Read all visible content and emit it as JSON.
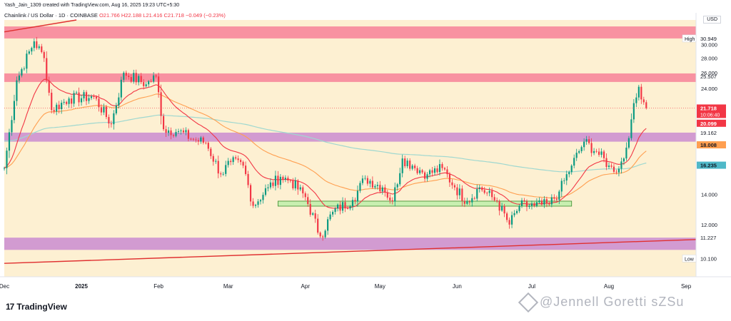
{
  "header": {
    "created_text": "Yash_Jain_1309 created with TradingView.com, Aug 16, 2025 19:23 UTC+5:30",
    "symbol_text": "Chainlink / US Dollar · 1D · COINBASE",
    "ohlc_o": "O21.766",
    "ohlc_h": "H22.188",
    "ohlc_l": "L21.416",
    "ohlc_c": "C21.718",
    "ohlc_change": "−0.049 (−0.23%)",
    "currency": "USD"
  },
  "branding": {
    "logo_text": "TradingView",
    "logo_mark": "17",
    "watermark": "@Jennell Goretti sZSu"
  },
  "colors": {
    "plot_bg": "#fdf0d2",
    "up": "#089981",
    "down": "#f23645",
    "pink_zone": "#f7849a",
    "purple_zone": "#cc8ed0",
    "green_zone": "#c8efb0",
    "ema_fast": "#f23645",
    "ema_mid": "#ff9f50",
    "ema_slow": "#9fd8d0",
    "trendline": "#e03030"
  },
  "chart_data": {
    "type": "candlestick",
    "title": "Chainlink / US Dollar · 1D · COINBASE",
    "y_scale": "log",
    "ylim": [
      9.2,
      34
    ],
    "x_range": [
      "2024-12-01",
      "2025-09-05"
    ],
    "x_tick_labels": [
      {
        "date": "2024-12-01",
        "label": "Dec",
        "bold": false
      },
      {
        "date": "2025-01-01",
        "label": "2025",
        "bold": true
      },
      {
        "date": "2025-02-01",
        "label": "Feb",
        "bold": false
      },
      {
        "date": "2025-03-01",
        "label": "Mar",
        "bold": false
      },
      {
        "date": "2025-04-01",
        "label": "Apr",
        "bold": false
      },
      {
        "date": "2025-05-01",
        "label": "May",
        "bold": false
      },
      {
        "date": "2025-06-01",
        "label": "Jun",
        "bold": false
      },
      {
        "date": "2025-07-01",
        "label": "Jul",
        "bold": false
      },
      {
        "date": "2025-08-01",
        "label": "Aug",
        "bold": false
      },
      {
        "date": "2025-09-01",
        "label": "Sep",
        "bold": false
      }
    ],
    "y_tick_labels": [
      "30.000",
      "28.000",
      "26.000",
      "24.000",
      "14.000",
      "12.000"
    ],
    "price_labels": [
      {
        "text": "30.949",
        "value": 30.949,
        "tag": "High",
        "style": "plain"
      },
      {
        "text": "25.507",
        "value": 25.507,
        "style": "plain"
      },
      {
        "text": "21.718",
        "value": 21.718,
        "sub": "10:06:40",
        "style": "red"
      },
      {
        "text": "20.099",
        "value": 20.099,
        "style": "red"
      },
      {
        "text": "19.162",
        "value": 19.162,
        "style": "plain"
      },
      {
        "text": "18.008",
        "value": 18.008,
        "style": "orange"
      },
      {
        "text": "16.235",
        "value": 16.235,
        "style": "teal"
      },
      {
        "text": "11.227",
        "value": 11.227,
        "style": "plain"
      },
      {
        "text": "10.100",
        "value": 10.1,
        "tag": "Low",
        "style": "plain"
      }
    ],
    "zones": [
      {
        "name": "resistance-top",
        "low": 30.949,
        "high": 32.9,
        "color": "pink"
      },
      {
        "name": "resistance-mid",
        "low": 24.8,
        "high": 25.9,
        "color": "pink"
      },
      {
        "name": "support-mid",
        "low": 18.3,
        "high": 19.162,
        "color": "purple"
      },
      {
        "name": "support-low",
        "low": 10.55,
        "high": 11.227,
        "color": "purple"
      }
    ],
    "accumulation_box": {
      "x0": "2025-03-21",
      "x1": "2025-07-17",
      "low": 13.18,
      "high": 13.52
    },
    "trendlines": [
      {
        "name": "upper-trend",
        "points": [
          [
            "2024-12-01",
            32.0
          ],
          [
            "2024-12-30",
            34.0
          ]
        ]
      },
      {
        "name": "lower-trend",
        "points": [
          [
            "2024-12-01",
            9.85
          ],
          [
            "2025-09-05",
            11.12
          ]
        ]
      }
    ],
    "key_levels": {
      "high": 30.949,
      "low": 10.1,
      "last": 21.718
    },
    "anchors": [
      [
        "2024-12-01",
        16.0
      ],
      [
        "2024-12-06",
        25.0
      ],
      [
        "2024-12-13",
        30.5
      ],
      [
        "2024-12-17",
        28.0
      ],
      [
        "2024-12-20",
        21.5
      ],
      [
        "2024-12-27",
        22.8
      ],
      [
        "2025-01-06",
        23.0
      ],
      [
        "2025-01-13",
        20.0
      ],
      [
        "2025-01-18",
        26.0
      ],
      [
        "2025-01-27",
        24.5
      ],
      [
        "2025-01-31",
        25.5
      ],
      [
        "2025-02-03",
        19.5
      ],
      [
        "2025-02-09",
        19.3
      ],
      [
        "2025-02-15",
        18.5
      ],
      [
        "2025-02-20",
        18.2
      ],
      [
        "2025-02-26",
        15.5
      ],
      [
        "2025-03-02",
        16.5
      ],
      [
        "2025-03-07",
        16.2
      ],
      [
        "2025-03-11",
        13.2
      ],
      [
        "2025-03-17",
        14.5
      ],
      [
        "2025-03-22",
        15.3
      ],
      [
        "2025-03-26",
        15.0
      ],
      [
        "2025-04-01",
        13.8
      ],
      [
        "2025-04-07",
        11.3
      ],
      [
        "2025-04-12",
        12.8
      ],
      [
        "2025-04-20",
        13.6
      ],
      [
        "2025-04-25",
        15.2
      ],
      [
        "2025-05-02",
        14.5
      ],
      [
        "2025-05-06",
        13.5
      ],
      [
        "2025-05-10",
        16.8
      ],
      [
        "2025-05-14",
        16.2
      ],
      [
        "2025-05-20",
        15.5
      ],
      [
        "2025-05-26",
        16.0
      ],
      [
        "2025-05-31",
        14.5
      ],
      [
        "2025-06-05",
        13.5
      ],
      [
        "2025-06-10",
        14.5
      ],
      [
        "2025-06-17",
        13.5
      ],
      [
        "2025-06-22",
        12.0
      ],
      [
        "2025-06-26",
        13.2
      ],
      [
        "2025-07-02",
        13.2
      ],
      [
        "2025-07-08",
        13.3
      ],
      [
        "2025-07-12",
        14.2
      ],
      [
        "2025-07-17",
        16.2
      ],
      [
        "2025-07-22",
        18.3
      ],
      [
        "2025-07-27",
        17.4
      ],
      [
        "2025-08-01",
        16.2
      ],
      [
        "2025-08-03",
        15.7
      ],
      [
        "2025-08-07",
        16.8
      ],
      [
        "2025-08-10",
        20.5
      ],
      [
        "2025-08-13",
        24.2
      ],
      [
        "2025-08-16",
        21.718
      ]
    ],
    "series": [
      {
        "name": "EMA fast",
        "last": 20.099,
        "color": "red"
      },
      {
        "name": "EMA mid",
        "last": 18.008,
        "color": "orange"
      },
      {
        "name": "EMA slow",
        "last": 16.235,
        "color": "teal"
      }
    ],
    "grid": false,
    "legend": "none"
  }
}
